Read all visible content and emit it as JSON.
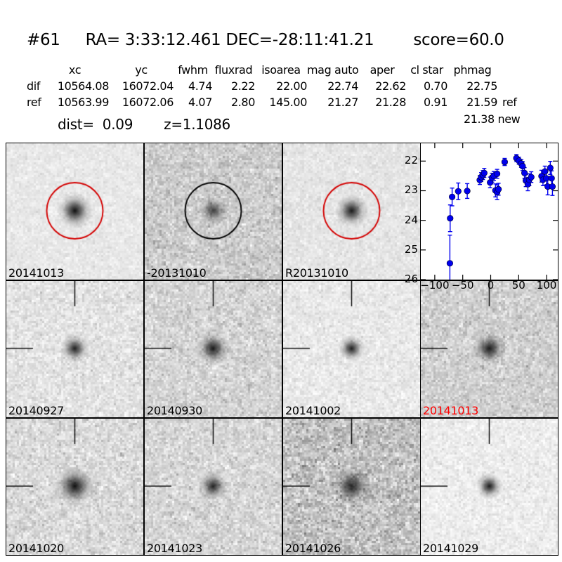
{
  "header": {
    "id": "#61",
    "coords": "RA= 3:33:12.461 DEC=-28:11:41.21",
    "score": "score=60.0"
  },
  "table": {
    "headers": [
      "",
      "xc",
      "yc",
      "fwhm",
      "fluxrad",
      "isoarea",
      "mag auto",
      "aper",
      "cl star",
      "phmag",
      ""
    ],
    "rows": [
      {
        "label": "dif",
        "cells": [
          "10564.08",
          "16072.04",
          "4.74",
          "2.22",
          "22.00",
          "22.74",
          "22.62",
          "0.70",
          "22.75"
        ],
        "suffix": ""
      },
      {
        "label": "ref",
        "cells": [
          "10563.99",
          "16072.06",
          "4.07",
          "2.80",
          "145.00",
          "21.27",
          "21.28",
          "0.91",
          "21.59"
        ],
        "suffix": "ref"
      }
    ],
    "extra_phmag": {
      "value": "21.38",
      "suffix": "new"
    },
    "dist": {
      "label": "dist=",
      "value": "0.09",
      "z": "z=1.1086"
    }
  },
  "colors": {
    "circle_red": "#d40000",
    "circle_black": "#000000",
    "label_red": "#ff0000",
    "label_black": "#000000",
    "marker_blue": "#0000ee"
  },
  "panels": [
    {
      "type": "cutout",
      "label": "20141013",
      "label_color": "#000000",
      "circle": "#d40000",
      "crosshair": false,
      "base": 232,
      "amp": 7,
      "blob_depth": 205,
      "blob_r": 8.5,
      "seed": 11
    },
    {
      "type": "cutout",
      "label": "-20131010",
      "label_color": "#000000",
      "circle": "#000000",
      "crosshair": false,
      "base": 203,
      "amp": 17,
      "blob_depth": 150,
      "blob_r": 7.5,
      "seed": 23
    },
    {
      "type": "cutout",
      "label": "R20131010",
      "label_color": "#000000",
      "circle": "#d40000",
      "crosshair": false,
      "base": 229,
      "amp": 8,
      "blob_depth": 195,
      "blob_r": 8,
      "seed": 37
    },
    {
      "type": "plot"
    },
    {
      "type": "cutout",
      "label": "20140927",
      "label_color": "#000000",
      "circle": null,
      "crosshair": true,
      "base": 227,
      "amp": 13,
      "blob_depth": 190,
      "blob_r": 7,
      "seed": 41
    },
    {
      "type": "cutout",
      "label": "20140930",
      "label_color": "#000000",
      "circle": null,
      "crosshair": true,
      "base": 212,
      "amp": 16,
      "blob_depth": 195,
      "blob_r": 8,
      "seed": 53
    },
    {
      "type": "cutout",
      "label": "20141002",
      "label_color": "#000000",
      "circle": null,
      "crosshair": true,
      "base": 233,
      "amp": 10,
      "blob_depth": 190,
      "blob_r": 6.5,
      "seed": 67
    },
    {
      "type": "cutout",
      "label": "20141013",
      "label_color": "#ff0000",
      "circle": null,
      "crosshair": true,
      "base": 208,
      "amp": 16,
      "blob_depth": 195,
      "blob_r": 8,
      "seed": 71
    },
    {
      "type": "cutout",
      "label": "20141020",
      "label_color": "#000000",
      "circle": null,
      "crosshair": true,
      "base": 218,
      "amp": 16,
      "blob_depth": 205,
      "blob_r": 9.5,
      "seed": 83
    },
    {
      "type": "cutout",
      "label": "20141023",
      "label_color": "#000000",
      "circle": null,
      "crosshair": true,
      "base": 214,
      "amp": 16,
      "blob_depth": 185,
      "blob_r": 7,
      "seed": 97
    },
    {
      "type": "cutout",
      "label": "20141026",
      "label_color": "#000000",
      "circle": null,
      "crosshair": true,
      "base": 193,
      "amp": 24,
      "blob_depth": 180,
      "blob_r": 9.5,
      "seed": 103
    },
    {
      "type": "cutout",
      "label": "20141029",
      "label_color": "#000000",
      "circle": null,
      "crosshair": true,
      "base": 237,
      "amp": 10,
      "blob_depth": 195,
      "blob_r": 6.5,
      "seed": 109
    }
  ],
  "chart_data": {
    "type": "scatter",
    "title": "",
    "xlabel": "",
    "ylabel": "",
    "xlim": [
      -125,
      120
    ],
    "ylim": [
      26,
      21.4
    ],
    "y_inverted": true,
    "grid": false,
    "legend": null,
    "xticks": [
      -100,
      -50,
      0,
      50,
      100
    ],
    "yticks": [
      22,
      23,
      24,
      25,
      26
    ],
    "marker_color": "#0000ee",
    "series_name": "lightcurve (mag vs epoch days)",
    "points": [
      {
        "x": -73,
        "mag": 25.45,
        "err": 0.95
      },
      {
        "x": -72.5,
        "mag": 23.93,
        "err": 0.45
      },
      {
        "x": -69,
        "mag": 23.21,
        "err": 0.3
      },
      {
        "x": -58,
        "mag": 23.02,
        "err": 0.28
      },
      {
        "x": -42,
        "mag": 23.01,
        "err": 0.25
      },
      {
        "x": -19.5,
        "mag": 22.64,
        "err": 0.15
      },
      {
        "x": -17,
        "mag": 22.54,
        "err": 0.15
      },
      {
        "x": -14,
        "mag": 22.47,
        "err": 0.15
      },
      {
        "x": -11.5,
        "mag": 22.4,
        "err": 0.15
      },
      {
        "x": -1,
        "mag": 22.72,
        "err": 0.18
      },
      {
        "x": 2.5,
        "mag": 22.56,
        "err": 0.15
      },
      {
        "x": 5.5,
        "mag": 22.5,
        "err": 0.15
      },
      {
        "x": 8.5,
        "mag": 22.99,
        "err": 0.22
      },
      {
        "x": 11.5,
        "mag": 23.05,
        "err": 0.25
      },
      {
        "x": 14,
        "mag": 22.95,
        "err": 0.2
      },
      {
        "x": 11.5,
        "mag": 22.43,
        "err": 0.15
      },
      {
        "x": 25,
        "mag": 22.03,
        "err": 0.12
      },
      {
        "x": 46,
        "mag": 21.9,
        "err": 0.12
      },
      {
        "x": 50.5,
        "mag": 21.99,
        "err": 0.12
      },
      {
        "x": 54.5,
        "mag": 22.08,
        "err": 0.13
      },
      {
        "x": 57,
        "mag": 22.17,
        "err": 0.15
      },
      {
        "x": 60.5,
        "mag": 22.4,
        "err": 0.18
      },
      {
        "x": 63,
        "mag": 22.66,
        "err": 0.2
      },
      {
        "x": 66.5,
        "mag": 22.78,
        "err": 0.22
      },
      {
        "x": 69,
        "mag": 22.63,
        "err": 0.2
      },
      {
        "x": 72.5,
        "mag": 22.54,
        "err": 0.18
      },
      {
        "x": 91,
        "mag": 22.51,
        "err": 0.2
      },
      {
        "x": 93.5,
        "mag": 22.63,
        "err": 0.2
      },
      {
        "x": 97,
        "mag": 22.35,
        "err": 0.18
      },
      {
        "x": 99.5,
        "mag": 22.58,
        "err": 0.22
      },
      {
        "x": 102,
        "mag": 22.86,
        "err": 0.28
      },
      {
        "x": 106.5,
        "mag": 22.23,
        "err": 0.22
      },
      {
        "x": 109,
        "mag": 22.58,
        "err": 0.25
      },
      {
        "x": 110.5,
        "mag": 22.86,
        "err": 0.3
      }
    ]
  }
}
